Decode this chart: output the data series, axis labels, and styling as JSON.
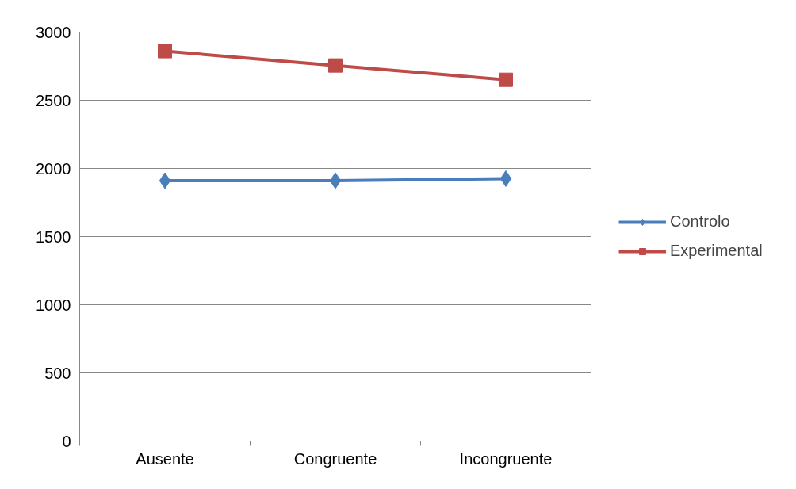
{
  "chart_data": {
    "type": "line",
    "categories": [
      "Ausente",
      "Congruente",
      "Incongruente"
    ],
    "series": [
      {
        "name": "Controlo",
        "color": "#4a7ebb",
        "marker": "diamond",
        "values": [
          1910,
          1910,
          1925
        ]
      },
      {
        "name": "Experimental",
        "color": "#be4b48",
        "marker": "square",
        "values": [
          2860,
          2755,
          2650
        ]
      }
    ],
    "ylim": [
      0,
      3000
    ],
    "yticks": [
      0,
      500,
      1000,
      1500,
      2000,
      2500,
      3000
    ],
    "grid": "y",
    "legend": "right",
    "line_style": "solid"
  }
}
